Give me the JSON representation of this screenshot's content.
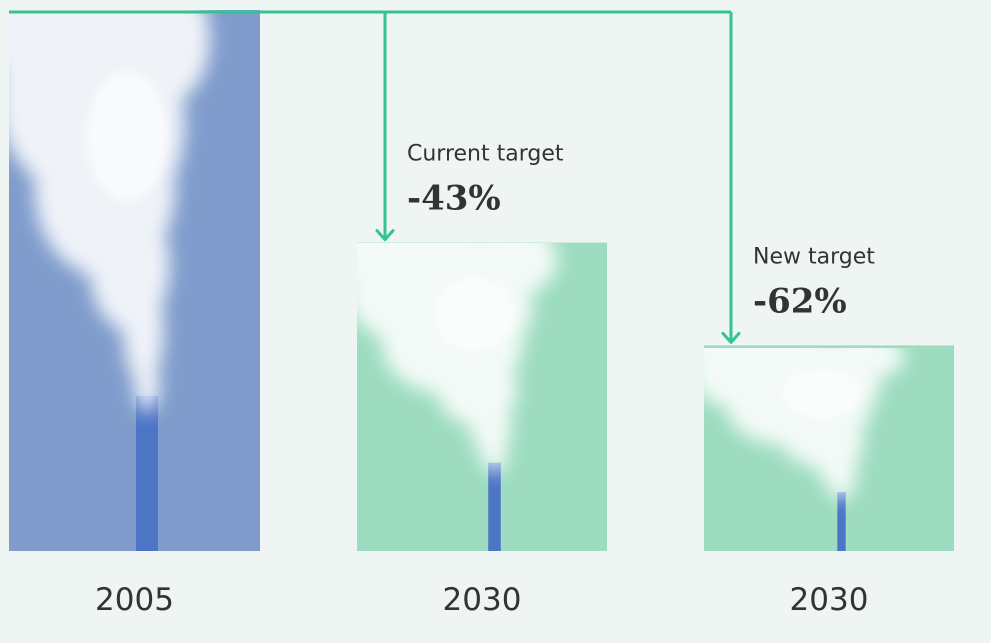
{
  "chart_data": {
    "type": "bar",
    "categories": [
      "2005",
      "2030",
      "2030"
    ],
    "values": [
      100,
      57,
      38
    ],
    "annotations": [
      {
        "category_index": 1,
        "caption": "Current target",
        "value_label": "-43%"
      },
      {
        "category_index": 2,
        "caption": "New target",
        "value_label": "-62%"
      }
    ],
    "ylim": [
      0,
      100
    ],
    "grid": false,
    "legend": "none"
  },
  "colors": {
    "background": "#eef5f2",
    "baseline_bar": "#7f9ccc",
    "target_bar": "#9ddcc0",
    "connector": "#35c391",
    "chimney": "#4d75c6",
    "smoke": "#ffffff",
    "text": "#333333"
  }
}
